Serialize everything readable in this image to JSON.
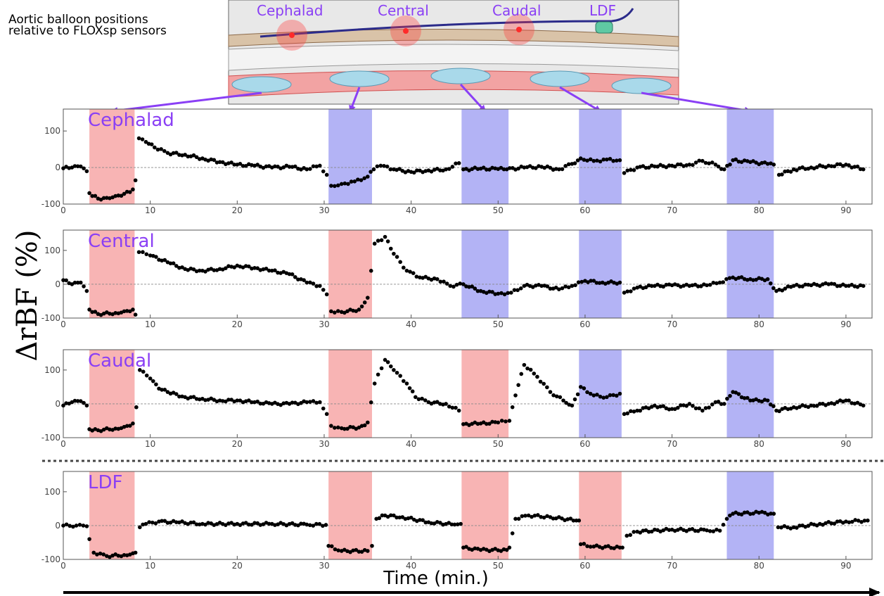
{
  "figure_note": "Aortic balloon positions\nrelative to FLOXsp sensors",
  "diagram": {
    "sensor_labels": [
      "Cephalad",
      "Central",
      "Caudal",
      "LDF"
    ]
  },
  "colors": {
    "occlusion_local": "#f8b4b4",
    "occlusion_remote": "#b3b3f5",
    "arrow": "#8a3ff5",
    "point": "#000000"
  },
  "chart_data": {
    "type": "scatter",
    "xlabel": "Time (min.)",
    "ylabel": "ΔrBF (%)",
    "xlim": [
      0,
      93
    ],
    "ylim": [
      -100,
      160
    ],
    "x_ticks": [
      0,
      10,
      20,
      30,
      40,
      50,
      60,
      70,
      80,
      90
    ],
    "y_ticks": [
      -100,
      0,
      100
    ],
    "balloon_windows": [
      [
        3,
        8.2
      ],
      [
        30.5,
        35.5
      ],
      [
        45.8,
        51.2
      ],
      [
        59.3,
        64.2
      ],
      [
        76.3,
        81.7
      ]
    ],
    "panels": [
      {
        "title": "Cephalad",
        "window_kind": [
          "local",
          "remote",
          "remote",
          "remote",
          "remote"
        ],
        "series": [
          [
            0,
            -2
          ],
          [
            1,
            0
          ],
          [
            2,
            3
          ],
          [
            2.7,
            -10
          ],
          [
            3,
            -70
          ],
          [
            4,
            -85
          ],
          [
            5,
            -83
          ],
          [
            6,
            -78
          ],
          [
            7,
            -72
          ],
          [
            8,
            -60
          ],
          [
            8.3,
            -35
          ],
          [
            8.7,
            80
          ],
          [
            9.5,
            70
          ],
          [
            10.5,
            55
          ],
          [
            12,
            40
          ],
          [
            14,
            35
          ],
          [
            16,
            25
          ],
          [
            18,
            15
          ],
          [
            20,
            8
          ],
          [
            22,
            5
          ],
          [
            24,
            0
          ],
          [
            26,
            2
          ],
          [
            28,
            -5
          ],
          [
            29.5,
            5
          ],
          [
            30.3,
            -20
          ],
          [
            30.8,
            -50
          ],
          [
            32,
            -45
          ],
          [
            33.5,
            -38
          ],
          [
            35,
            -25
          ],
          [
            35.7,
            -5
          ],
          [
            36.5,
            5
          ],
          [
            38,
            -5
          ],
          [
            40,
            -12
          ],
          [
            42,
            -8
          ],
          [
            44,
            -5
          ],
          [
            45.5,
            12
          ],
          [
            46,
            -5
          ],
          [
            48,
            -3
          ],
          [
            50,
            -4
          ],
          [
            51,
            -5
          ],
          [
            53,
            0
          ],
          [
            55,
            2
          ],
          [
            57,
            -5
          ],
          [
            58.5,
            10
          ],
          [
            59.5,
            25
          ],
          [
            61,
            18
          ],
          [
            62.5,
            22
          ],
          [
            64,
            20
          ],
          [
            64.5,
            -15
          ],
          [
            66,
            0
          ],
          [
            68,
            3
          ],
          [
            70,
            5
          ],
          [
            72,
            8
          ],
          [
            73.5,
            18
          ],
          [
            75,
            8
          ],
          [
            76,
            -5
          ],
          [
            77,
            20
          ],
          [
            79,
            15
          ],
          [
            81,
            10
          ],
          [
            81.7,
            8
          ],
          [
            82.3,
            -20
          ],
          [
            84,
            -5
          ],
          [
            86,
            0
          ],
          [
            88,
            5
          ],
          [
            90,
            8
          ],
          [
            92,
            -5
          ]
        ]
      },
      {
        "title": "Central",
        "window_kind": [
          "local",
          "local",
          "remote",
          "remote",
          "remote"
        ],
        "series": [
          [
            0,
            12
          ],
          [
            1,
            0
          ],
          [
            2,
            5
          ],
          [
            2.7,
            -20
          ],
          [
            3,
            -75
          ],
          [
            4,
            -88
          ],
          [
            6,
            -85
          ],
          [
            7,
            -80
          ],
          [
            8,
            -75
          ],
          [
            8.3,
            -90
          ],
          [
            8.7,
            95
          ],
          [
            10,
            85
          ],
          [
            12,
            65
          ],
          [
            14,
            45
          ],
          [
            16,
            40
          ],
          [
            18,
            45
          ],
          [
            20,
            55
          ],
          [
            22,
            48
          ],
          [
            24,
            40
          ],
          [
            26,
            30
          ],
          [
            28,
            5
          ],
          [
            29.5,
            -5
          ],
          [
            30.3,
            -30
          ],
          [
            30.8,
            -80
          ],
          [
            32,
            -82
          ],
          [
            34,
            -75
          ],
          [
            35,
            -40
          ],
          [
            35.8,
            120
          ],
          [
            37,
            140
          ],
          [
            38,
            90
          ],
          [
            39.5,
            40
          ],
          [
            41,
            20
          ],
          [
            43,
            15
          ],
          [
            44.5,
            -5
          ],
          [
            46,
            0
          ],
          [
            48,
            -20
          ],
          [
            50,
            -28
          ],
          [
            51.5,
            -25
          ],
          [
            53,
            -5
          ],
          [
            55,
            -5
          ],
          [
            57,
            -15
          ],
          [
            58.5,
            -5
          ],
          [
            60,
            10
          ],
          [
            62,
            5
          ],
          [
            64,
            5
          ],
          [
            64.5,
            -25
          ],
          [
            66,
            -10
          ],
          [
            68,
            -5
          ],
          [
            70,
            -3
          ],
          [
            72,
            -5
          ],
          [
            74,
            -3
          ],
          [
            75.5,
            5
          ],
          [
            77,
            20
          ],
          [
            79,
            15
          ],
          [
            81,
            15
          ],
          [
            82,
            -20
          ],
          [
            84,
            -5
          ],
          [
            86,
            -3
          ],
          [
            88,
            0
          ],
          [
            90,
            -5
          ],
          [
            92,
            -5
          ]
        ]
      },
      {
        "title": "Caudal",
        "window_kind": [
          "local",
          "local",
          "local",
          "remote",
          "remote"
        ],
        "series": [
          [
            0,
            -5
          ],
          [
            1,
            5
          ],
          [
            2,
            8
          ],
          [
            2.7,
            -5
          ],
          [
            3,
            -75
          ],
          [
            4,
            -78
          ],
          [
            6,
            -73
          ],
          [
            7,
            -68
          ],
          [
            8,
            -58
          ],
          [
            8.4,
            -10
          ],
          [
            8.8,
            100
          ],
          [
            10,
            75
          ],
          [
            11,
            45
          ],
          [
            12,
            35
          ],
          [
            14,
            20
          ],
          [
            16,
            15
          ],
          [
            18,
            10
          ],
          [
            20,
            10
          ],
          [
            22,
            5
          ],
          [
            24,
            0
          ],
          [
            26,
            0
          ],
          [
            28,
            5
          ],
          [
            29.5,
            5
          ],
          [
            30.3,
            -30
          ],
          [
            30.8,
            -65
          ],
          [
            32,
            -72
          ],
          [
            34,
            -70
          ],
          [
            35,
            -55
          ],
          [
            35.8,
            60
          ],
          [
            37,
            130
          ],
          [
            38,
            100
          ],
          [
            39.5,
            60
          ],
          [
            40.5,
            20
          ],
          [
            42,
            5
          ],
          [
            44,
            0
          ],
          [
            45.5,
            -20
          ],
          [
            46,
            -60
          ],
          [
            48,
            -58
          ],
          [
            50,
            -55
          ],
          [
            51.3,
            -50
          ],
          [
            52,
            25
          ],
          [
            53,
            115
          ],
          [
            54.5,
            80
          ],
          [
            56,
            35
          ],
          [
            57.5,
            10
          ],
          [
            58.5,
            -5
          ],
          [
            59.5,
            50
          ],
          [
            61,
            25
          ],
          [
            62.5,
            20
          ],
          [
            64,
            30
          ],
          [
            64.5,
            -30
          ],
          [
            66,
            -20
          ],
          [
            68,
            -5
          ],
          [
            70,
            -15
          ],
          [
            72,
            0
          ],
          [
            73.5,
            -20
          ],
          [
            75,
            5
          ],
          [
            76,
            0
          ],
          [
            77,
            35
          ],
          [
            79,
            10
          ],
          [
            81,
            10
          ],
          [
            82,
            -20
          ],
          [
            84,
            -10
          ],
          [
            86,
            -5
          ],
          [
            88,
            0
          ],
          [
            90,
            10
          ],
          [
            92,
            -5
          ]
        ]
      },
      {
        "title": "LDF",
        "window_kind": [
          "local",
          "local",
          "local",
          "local",
          "remote"
        ],
        "series": [
          [
            0,
            0
          ],
          [
            1.5,
            0
          ],
          [
            2.7,
            -2
          ],
          [
            3,
            -40
          ],
          [
            3.5,
            -80
          ],
          [
            5,
            -90
          ],
          [
            7,
            -87
          ],
          [
            8,
            -82
          ],
          [
            8.3,
            -80
          ],
          [
            8.8,
            -5
          ],
          [
            9.5,
            5
          ],
          [
            11,
            12
          ],
          [
            13,
            10
          ],
          [
            16,
            5
          ],
          [
            20,
            5
          ],
          [
            24,
            5
          ],
          [
            28,
            3
          ],
          [
            30.2,
            2
          ],
          [
            30.5,
            -60
          ],
          [
            32,
            -75
          ],
          [
            35,
            -75
          ],
          [
            35.5,
            -60
          ],
          [
            36,
            20
          ],
          [
            37,
            30
          ],
          [
            39,
            25
          ],
          [
            42,
            10
          ],
          [
            45,
            3
          ],
          [
            45.7,
            5
          ],
          [
            46,
            -65
          ],
          [
            48,
            -72
          ],
          [
            51,
            -72
          ],
          [
            51.3,
            -65
          ],
          [
            52,
            20
          ],
          [
            53.5,
            30
          ],
          [
            56,
            25
          ],
          [
            59,
            15
          ],
          [
            59.3,
            15
          ],
          [
            59.5,
            -55
          ],
          [
            61,
            -62
          ],
          [
            64,
            -65
          ],
          [
            64.3,
            -65
          ],
          [
            64.8,
            -30
          ],
          [
            66,
            -18
          ],
          [
            70,
            -12
          ],
          [
            74,
            -14
          ],
          [
            75.5,
            -15
          ],
          [
            76.3,
            20
          ],
          [
            77,
            35
          ],
          [
            80,
            38
          ],
          [
            81.7,
            35
          ],
          [
            82.2,
            -5
          ],
          [
            84,
            -5
          ],
          [
            87,
            5
          ],
          [
            90,
            12
          ],
          [
            92.5,
            15
          ]
        ]
      }
    ]
  }
}
